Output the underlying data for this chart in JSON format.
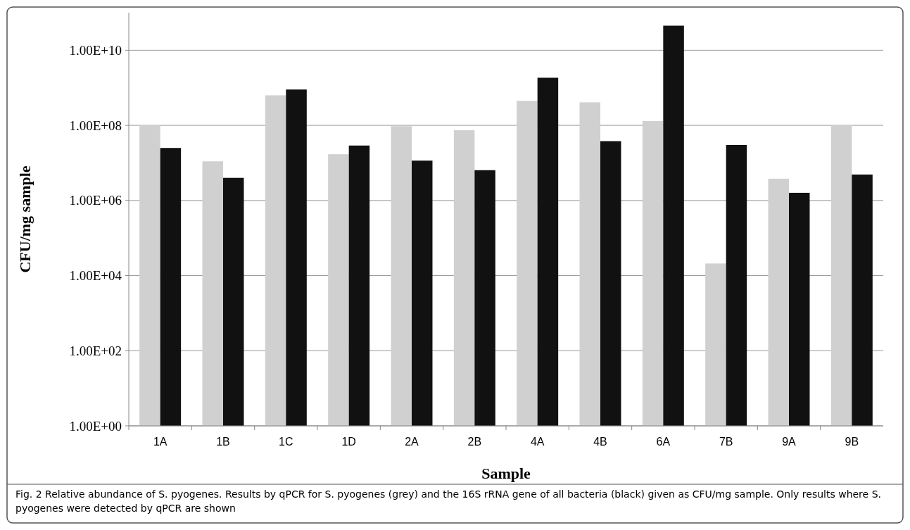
{
  "chart_data": {
    "type": "bar",
    "xlabel": "Sample",
    "ylabel": "CFU/mg sample",
    "categories": [
      "1A",
      "1B",
      "1C",
      "1D",
      "2A",
      "2B",
      "4A",
      "4B",
      "6A",
      "7B",
      "9A",
      "9B"
    ],
    "series": [
      {
        "color": "#d0d0d0",
        "values": [
          100000000.0,
          11000000.0,
          630000000.0,
          17000000.0,
          95000000.0,
          74000000.0,
          450000000.0,
          410000000.0,
          130000000.0,
          21000.0,
          3800000.0,
          100000000.0
        ]
      },
      {
        "color": "#111111",
        "values": [
          25000000.0,
          4000000.0,
          900000000.0,
          29000000.0,
          11500000.0,
          6400000.0,
          1850000000.0,
          38000000.0,
          45000000000.0,
          30000000.0,
          1600000.0,
          4900000.0
        ]
      }
    ],
    "log": "y",
    "ylim": [
      1,
      100000000000.0
    ],
    "yticks": [
      {
        "value": 1,
        "label": "1.00E+00"
      },
      {
        "value": 100,
        "label": "1.00E+02"
      },
      {
        "value": 10000,
        "label": "1.00E+04"
      },
      {
        "value": 1000000,
        "label": "1.00E+06"
      },
      {
        "value": 100000000,
        "label": "1.00E+08"
      },
      {
        "value": 10000000000,
        "label": "1.00E+10"
      }
    ],
    "grid": "y",
    "annotations": [
      "Fig. 2 Relative abundance of S. pyogenes. Results by qPCR for S. pyogenes (grey) and the 16S rRNA gene of all bacteria (black) given as CFU/mg sample. Only results where S. pyogenes were detected by qPCR are shown"
    ]
  }
}
